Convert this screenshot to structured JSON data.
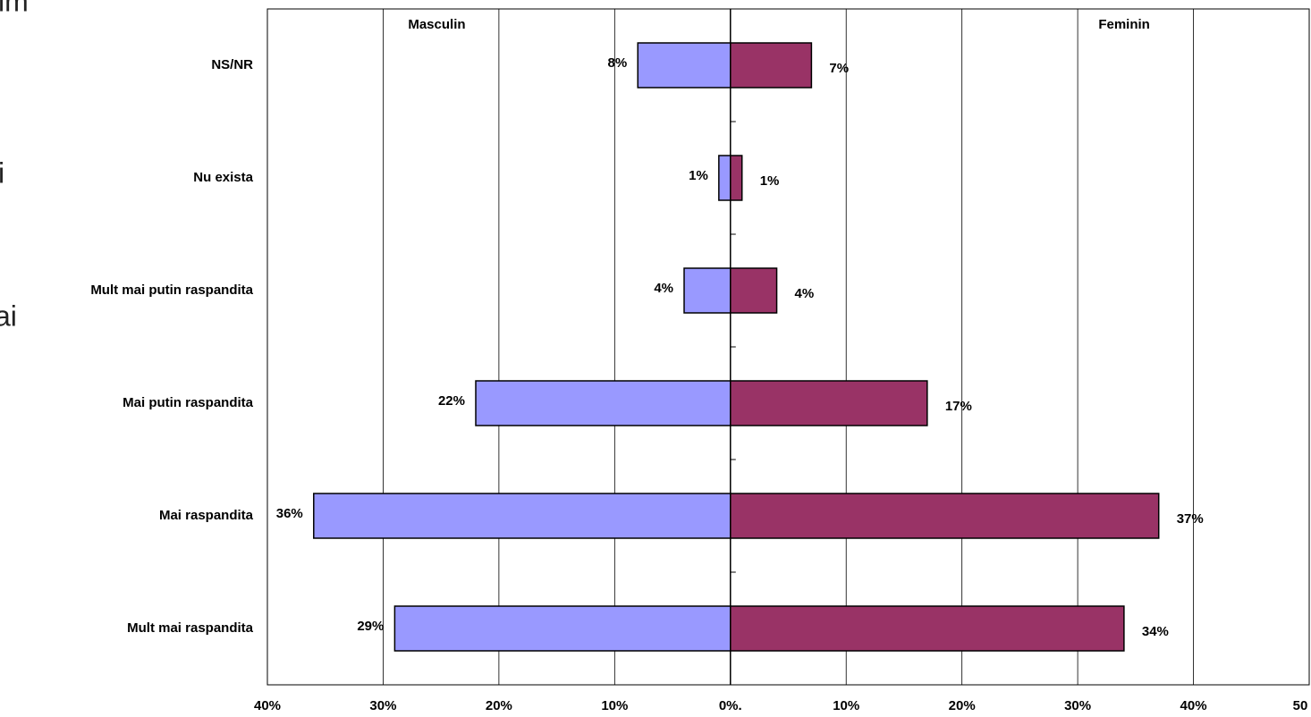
{
  "chart_data": {
    "type": "butterfly",
    "categories": [
      "NS/NR",
      "Nu exista",
      "Mult mai putin raspandita",
      "Mai putin raspandita",
      "Mai raspandita",
      "Mult mai raspandita"
    ],
    "series": [
      {
        "name": "Masculin",
        "color": "#9999ff",
        "side": "left",
        "values": [
          8,
          1,
          4,
          22,
          36,
          29
        ],
        "value_labels": [
          "8%",
          "1%",
          "4%",
          "22%",
          "36%",
          "29%"
        ]
      },
      {
        "name": "Feminin",
        "color": "#993366",
        "side": "right",
        "values": [
          7,
          1,
          4,
          17,
          37,
          34
        ],
        "value_labels": [
          "7%",
          "1%",
          "4%",
          "17%",
          "37%",
          "34%"
        ]
      }
    ],
    "xlim": [
      -40,
      50
    ],
    "xticks": [
      {
        "value": -40,
        "label": "40%"
      },
      {
        "value": -30,
        "label": "30%"
      },
      {
        "value": -20,
        "label": "20%"
      },
      {
        "value": -10,
        "label": "10%"
      },
      {
        "value": 0,
        "label": "0%."
      },
      {
        "value": 10,
        "label": "10%"
      },
      {
        "value": 20,
        "label": "20%"
      },
      {
        "value": 30,
        "label": "30%"
      },
      {
        "value": 40,
        "label": "40%"
      },
      50
    ],
    "grid": true,
    "annotations": [
      "im",
      "i",
      "ai"
    ]
  }
}
